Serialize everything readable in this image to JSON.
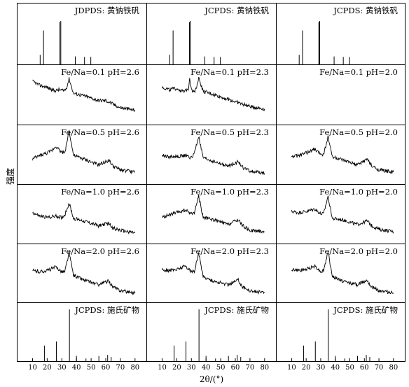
{
  "chart_data": {
    "type": "line",
    "xlabel": "2θ/(°)",
    "ylabel": "强度",
    "xlim": [
      5,
      82
    ],
    "xticks": [
      10,
      20,
      30,
      40,
      50,
      60,
      70,
      80
    ],
    "grid": false,
    "columns": [
      "pH=2.6",
      "pH=2.3",
      "pH=2.0"
    ],
    "rows": [
      {
        "kind": "reference",
        "labels": [
          "JDPDS: 黄钠铁矾",
          "JCPDS: 黄钠铁矾",
          "JCPDS: 黄钠铁矾"
        ],
        "peaks": [
          {
            "x": 15.2,
            "h": 0.18
          },
          {
            "x": 17.5,
            "h": 0.64
          },
          {
            "x": 28.7,
            "h": 0.8
          },
          {
            "x": 29.3,
            "h": 0.82
          },
          {
            "x": 39.2,
            "h": 0.15
          },
          {
            "x": 45.5,
            "h": 0.14
          },
          {
            "x": 49.8,
            "h": 0.14
          }
        ]
      },
      {
        "kind": "pattern",
        "labels": [
          "Fe/Na=0.1 pH=2.6",
          "Fe/Na=0.1 pH=2.3",
          "Fe/Na=0.1 pH=2.0"
        ],
        "series": [
          {
            "x": [
              10,
              15,
              20,
              25,
              28,
              31,
              33,
              35,
              38,
              45,
              55,
              60,
              65,
              70,
              80
            ],
            "y": [
              0.72,
              0.65,
              0.62,
              0.56,
              0.58,
              0.56,
              0.6,
              0.76,
              0.52,
              0.48,
              0.4,
              0.4,
              0.34,
              0.28,
              0.24
            ]
          },
          {
            "x": [
              10,
              15,
              20,
              25,
              28,
              28.8,
              29.5,
              31,
              33,
              35,
              38,
              45,
              55,
              65,
              70,
              80
            ],
            "y": [
              0.62,
              0.58,
              0.6,
              0.54,
              0.6,
              0.78,
              0.66,
              0.54,
              0.58,
              0.78,
              0.55,
              0.5,
              0.42,
              0.34,
              0.3,
              0.26
            ]
          },
          {
            "x": [],
            "y": []
          }
        ]
      },
      {
        "kind": "pattern",
        "labels": [
          "Fe/Na=0.5 pH=2.6",
          "Fe/Na=0.5 pH=2.3",
          "Fe/Na=0.5 pH=2.0"
        ],
        "series": [
          {
            "x": [
              10,
              15,
              20,
              23,
              26,
              29,
              32,
              35,
              38,
              45,
              55,
              62,
              65,
              70,
              80
            ],
            "y": [
              0.42,
              0.48,
              0.52,
              0.56,
              0.64,
              0.55,
              0.52,
              0.9,
              0.48,
              0.42,
              0.32,
              0.4,
              0.3,
              0.24,
              0.2
            ]
          },
          {
            "x": [
              10,
              15,
              20,
              26,
              30,
              32,
              35,
              38,
              45,
              55,
              62,
              65,
              70,
              80
            ],
            "y": [
              0.48,
              0.46,
              0.46,
              0.48,
              0.44,
              0.52,
              0.8,
              0.44,
              0.38,
              0.3,
              0.38,
              0.28,
              0.22,
              0.18
            ]
          },
          {
            "x": [
              10,
              15,
              20,
              23,
              26,
              29,
              32,
              35,
              38,
              45,
              55,
              62,
              65,
              70,
              80
            ],
            "y": [
              0.46,
              0.48,
              0.52,
              0.56,
              0.58,
              0.52,
              0.5,
              0.8,
              0.46,
              0.4,
              0.32,
              0.42,
              0.3,
              0.24,
              0.2
            ]
          }
        ]
      },
      {
        "kind": "pattern",
        "labels": [
          "Fe/Na=1.0 pH=2.6",
          "Fe/Na=1.0 pH=2.3",
          "Fe/Na=1.0 pH=2.0"
        ],
        "series": [
          {
            "x": [
              10,
              15,
              20,
              26,
              30,
              32,
              35,
              38,
              45,
              55,
              62,
              65,
              70,
              80
            ],
            "y": [
              0.52,
              0.46,
              0.44,
              0.46,
              0.44,
              0.48,
              0.68,
              0.42,
              0.38,
              0.3,
              0.34,
              0.26,
              0.22,
              0.18
            ]
          },
          {
            "x": [
              10,
              15,
              20,
              26,
              30,
              32,
              35,
              38,
              45,
              55,
              62,
              65,
              70,
              80
            ],
            "y": [
              0.44,
              0.48,
              0.52,
              0.56,
              0.5,
              0.52,
              0.8,
              0.44,
              0.4,
              0.32,
              0.4,
              0.3,
              0.22,
              0.2
            ]
          },
          {
            "x": [
              10,
              15,
              20,
              26,
              30,
              32,
              35,
              38,
              45,
              55,
              62,
              65,
              70,
              80
            ],
            "y": [
              0.54,
              0.52,
              0.54,
              0.58,
              0.5,
              0.5,
              0.8,
              0.42,
              0.4,
              0.32,
              0.38,
              0.3,
              0.24,
              0.2
            ]
          }
        ]
      },
      {
        "kind": "pattern",
        "labels": [
          "Fe/Na=2.0 pH=2.6",
          "Fe/Na=2.0 pH=2.3",
          "Fe/Na=2.0 pH=2.0"
        ],
        "series": [
          {
            "x": [
              10,
              15,
              20,
              26,
              30,
              32,
              35,
              38,
              45,
              55,
              62,
              65,
              70,
              80
            ],
            "y": [
              0.54,
              0.52,
              0.54,
              0.6,
              0.52,
              0.52,
              0.84,
              0.46,
              0.38,
              0.3,
              0.36,
              0.26,
              0.2,
              0.16
            ]
          },
          {
            "x": [
              10,
              15,
              20,
              26,
              30,
              32,
              35,
              38,
              45,
              55,
              62,
              65,
              70,
              80
            ],
            "y": [
              0.56,
              0.54,
              0.56,
              0.62,
              0.52,
              0.52,
              0.84,
              0.44,
              0.36,
              0.3,
              0.38,
              0.26,
              0.2,
              0.16
            ]
          },
          {
            "x": [
              10,
              15,
              20,
              26,
              30,
              32,
              35,
              38,
              45,
              55,
              62,
              65,
              70,
              80
            ],
            "y": [
              0.56,
              0.54,
              0.56,
              0.62,
              0.52,
              0.54,
              0.86,
              0.44,
              0.36,
              0.3,
              0.38,
              0.26,
              0.2,
              0.16
            ]
          }
        ]
      },
      {
        "kind": "reference",
        "labels": [
          "JCPDS: 施氏矿物",
          "JCPDS: 施氏矿物",
          "JCPDS: 施氏矿物"
        ],
        "peaks": [
          {
            "x": 18.2,
            "h": 0.3
          },
          {
            "x": 26.3,
            "h": 0.38
          },
          {
            "x": 35.2,
            "h": 1.0
          },
          {
            "x": 40.0,
            "h": 0.1
          },
          {
            "x": 46.5,
            "h": 0.05
          },
          {
            "x": 55.3,
            "h": 0.1
          },
          {
            "x": 61.3,
            "h": 0.12
          },
          {
            "x": 63.7,
            "h": 0.08
          }
        ]
      }
    ]
  }
}
